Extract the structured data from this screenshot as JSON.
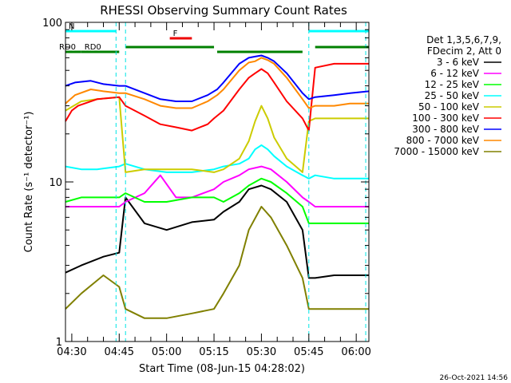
{
  "chart_data": {
    "type": "line",
    "title": "RHESSI Observing Summary Count Rates",
    "xlabel": "Start Time (08-Jun-15 04:28:02)",
    "ylabel": "Count Rate (s⁻¹ detector⁻¹)",
    "yscale": "log",
    "ylim": [
      1,
      100
    ],
    "xlim_minutes": [
      0,
      96
    ],
    "x_ticks": [
      {
        "m": 2,
        "label": "04:30"
      },
      {
        "m": 17,
        "label": "04:45"
      },
      {
        "m": 32,
        "label": "05:00"
      },
      {
        "m": 47,
        "label": "05:15"
      },
      {
        "m": 62,
        "label": "05:30"
      },
      {
        "m": 77,
        "label": "05:45"
      },
      {
        "m": 92,
        "label": "06:00"
      }
    ],
    "y_tick_labels": [
      {
        "v": 1,
        "label": "1"
      },
      {
        "v": 10,
        "label": "10"
      },
      {
        "v": 100,
        "label": "100"
      }
    ],
    "legend": {
      "header": [
        "Det 1,3,5,6,7,9,",
        "FDecim 2, Att 0"
      ],
      "position": "right"
    },
    "series": [
      {
        "name": "3 - 6 keV",
        "color": "#000000",
        "x": [
          0,
          5,
          12,
          17,
          19,
          25,
          32,
          40,
          47,
          50,
          55,
          58,
          62,
          65,
          70,
          75,
          77,
          79,
          85,
          90,
          96
        ],
        "y": [
          2.7,
          3.0,
          3.4,
          3.6,
          8.0,
          5.5,
          5.0,
          5.6,
          5.8,
          6.5,
          7.5,
          9.0,
          9.5,
          9.0,
          7.5,
          5.0,
          2.5,
          2.5,
          2.6,
          2.6,
          2.6
        ]
      },
      {
        "name": "6 - 12 keV",
        "color": "#ff00ff",
        "x": [
          0,
          5,
          10,
          17,
          19,
          25,
          30,
          35,
          40,
          47,
          50,
          55,
          58,
          62,
          65,
          70,
          75,
          77,
          79,
          85,
          90,
          96
        ],
        "y": [
          7.0,
          7.0,
          7.0,
          7.0,
          7.5,
          8.5,
          11.0,
          8.0,
          8.0,
          9.0,
          10.0,
          11.0,
          12.0,
          12.5,
          12.0,
          10.0,
          8.0,
          7.5,
          7.0,
          7.0,
          7.0,
          7.0
        ]
      },
      {
        "name": "12 - 25 keV",
        "color": "#00ff00",
        "x": [
          0,
          5,
          10,
          17,
          19,
          25,
          32,
          40,
          47,
          50,
          55,
          58,
          62,
          65,
          70,
          75,
          77,
          79,
          85,
          90,
          96
        ],
        "y": [
          7.5,
          8.0,
          8.0,
          8.0,
          8.5,
          7.5,
          7.5,
          8.0,
          8.0,
          7.5,
          8.5,
          9.5,
          10.5,
          10.0,
          8.5,
          7.0,
          5.5,
          5.5,
          5.5,
          5.5,
          5.5
        ]
      },
      {
        "name": "25 - 50 keV",
        "color": "#00ffff",
        "x": [
          0,
          5,
          10,
          17,
          19,
          25,
          32,
          40,
          47,
          50,
          55,
          58,
          60,
          62,
          64,
          66,
          70,
          75,
          77,
          79,
          85,
          90,
          96
        ],
        "y": [
          12.5,
          12.0,
          12.0,
          12.5,
          13.0,
          12.0,
          11.5,
          11.5,
          12.0,
          12.5,
          13.0,
          14.0,
          16.0,
          17.0,
          16.0,
          14.5,
          12.5,
          11.0,
          10.5,
          11.0,
          10.5,
          10.5,
          10.5
        ]
      },
      {
        "name": "50 - 100 keV",
        "color": "#cccc00",
        "x": [
          0,
          5,
          10,
          17,
          19,
          25,
          32,
          40,
          47,
          50,
          55,
          58,
          60,
          62,
          64,
          66,
          70,
          75,
          77,
          79,
          85,
          90,
          96
        ],
        "y": [
          28,
          32,
          33,
          34,
          11.5,
          12,
          12,
          12,
          11.5,
          12,
          14,
          18,
          24,
          30,
          25,
          19,
          14,
          11.5,
          24,
          25,
          25,
          25,
          25
        ]
      },
      {
        "name": "100 - 300 keV",
        "color": "#ff0000",
        "x": [
          0,
          2,
          4,
          10,
          17,
          19,
          25,
          30,
          35,
          40,
          45,
          47,
          50,
          55,
          58,
          60,
          62,
          64,
          66,
          70,
          75,
          77,
          79,
          85,
          90,
          96
        ],
        "y": [
          24,
          28,
          30,
          33,
          34,
          30,
          26,
          23,
          22,
          21,
          23,
          25,
          28,
          38,
          45,
          48,
          51,
          48,
          42,
          32,
          25,
          21,
          52,
          55,
          55,
          55
        ]
      },
      {
        "name": "300 - 800 keV",
        "color": "#0000ff",
        "x": [
          0,
          3,
          8,
          12,
          17,
          19,
          25,
          30,
          35,
          40,
          45,
          48,
          50,
          55,
          58,
          60,
          62,
          64,
          66,
          70,
          75,
          77,
          79,
          85,
          90,
          96
        ],
        "y": [
          40,
          42,
          43,
          41,
          40,
          40,
          36,
          33,
          32,
          32,
          35,
          38,
          42,
          55,
          60,
          61,
          62,
          60,
          57,
          48,
          36,
          33,
          34,
          35,
          36,
          37
        ]
      },
      {
        "name": "800 - 7000 keV",
        "color": "#ff8800",
        "x": [
          0,
          3,
          8,
          12,
          17,
          19,
          25,
          30,
          35,
          40,
          45,
          48,
          50,
          55,
          58,
          60,
          62,
          64,
          66,
          70,
          75,
          77,
          79,
          85,
          90,
          96
        ],
        "y": [
          31,
          35,
          38,
          37,
          36,
          36,
          33,
          30,
          29,
          29,
          32,
          35,
          38,
          50,
          56,
          57,
          60,
          58,
          55,
          45,
          33,
          29,
          30,
          30,
          31,
          31
        ]
      },
      {
        "name": "7000 - 15000 keV",
        "color": "#808000",
        "x": [
          0,
          5,
          12,
          17,
          19,
          25,
          32,
          40,
          47,
          50,
          55,
          58,
          62,
          65,
          70,
          75,
          77,
          79,
          85,
          90,
          96
        ],
        "y": [
          1.6,
          2.0,
          2.6,
          2.2,
          1.6,
          1.4,
          1.4,
          1.5,
          1.6,
          2.0,
          3.0,
          5.0,
          7.0,
          6.0,
          4.0,
          2.5,
          1.6,
          1.6,
          1.6,
          1.6,
          1.6
        ]
      }
    ],
    "annotations": [
      {
        "label": "RD0",
        "color": "#008000",
        "x0": 5,
        "x1": 17
      },
      {
        "label": "RD0",
        "color": "#008000",
        "x0": 0,
        "x1": 5
      },
      {
        "label": "F",
        "color": "#ee0000",
        "x0": 33,
        "x1": 40
      },
      {
        "label": "N",
        "color": "#00ffff",
        "x0": 0,
        "x1": 16
      }
    ],
    "footer_timestamp": "26-Oct-2021 14:56"
  }
}
